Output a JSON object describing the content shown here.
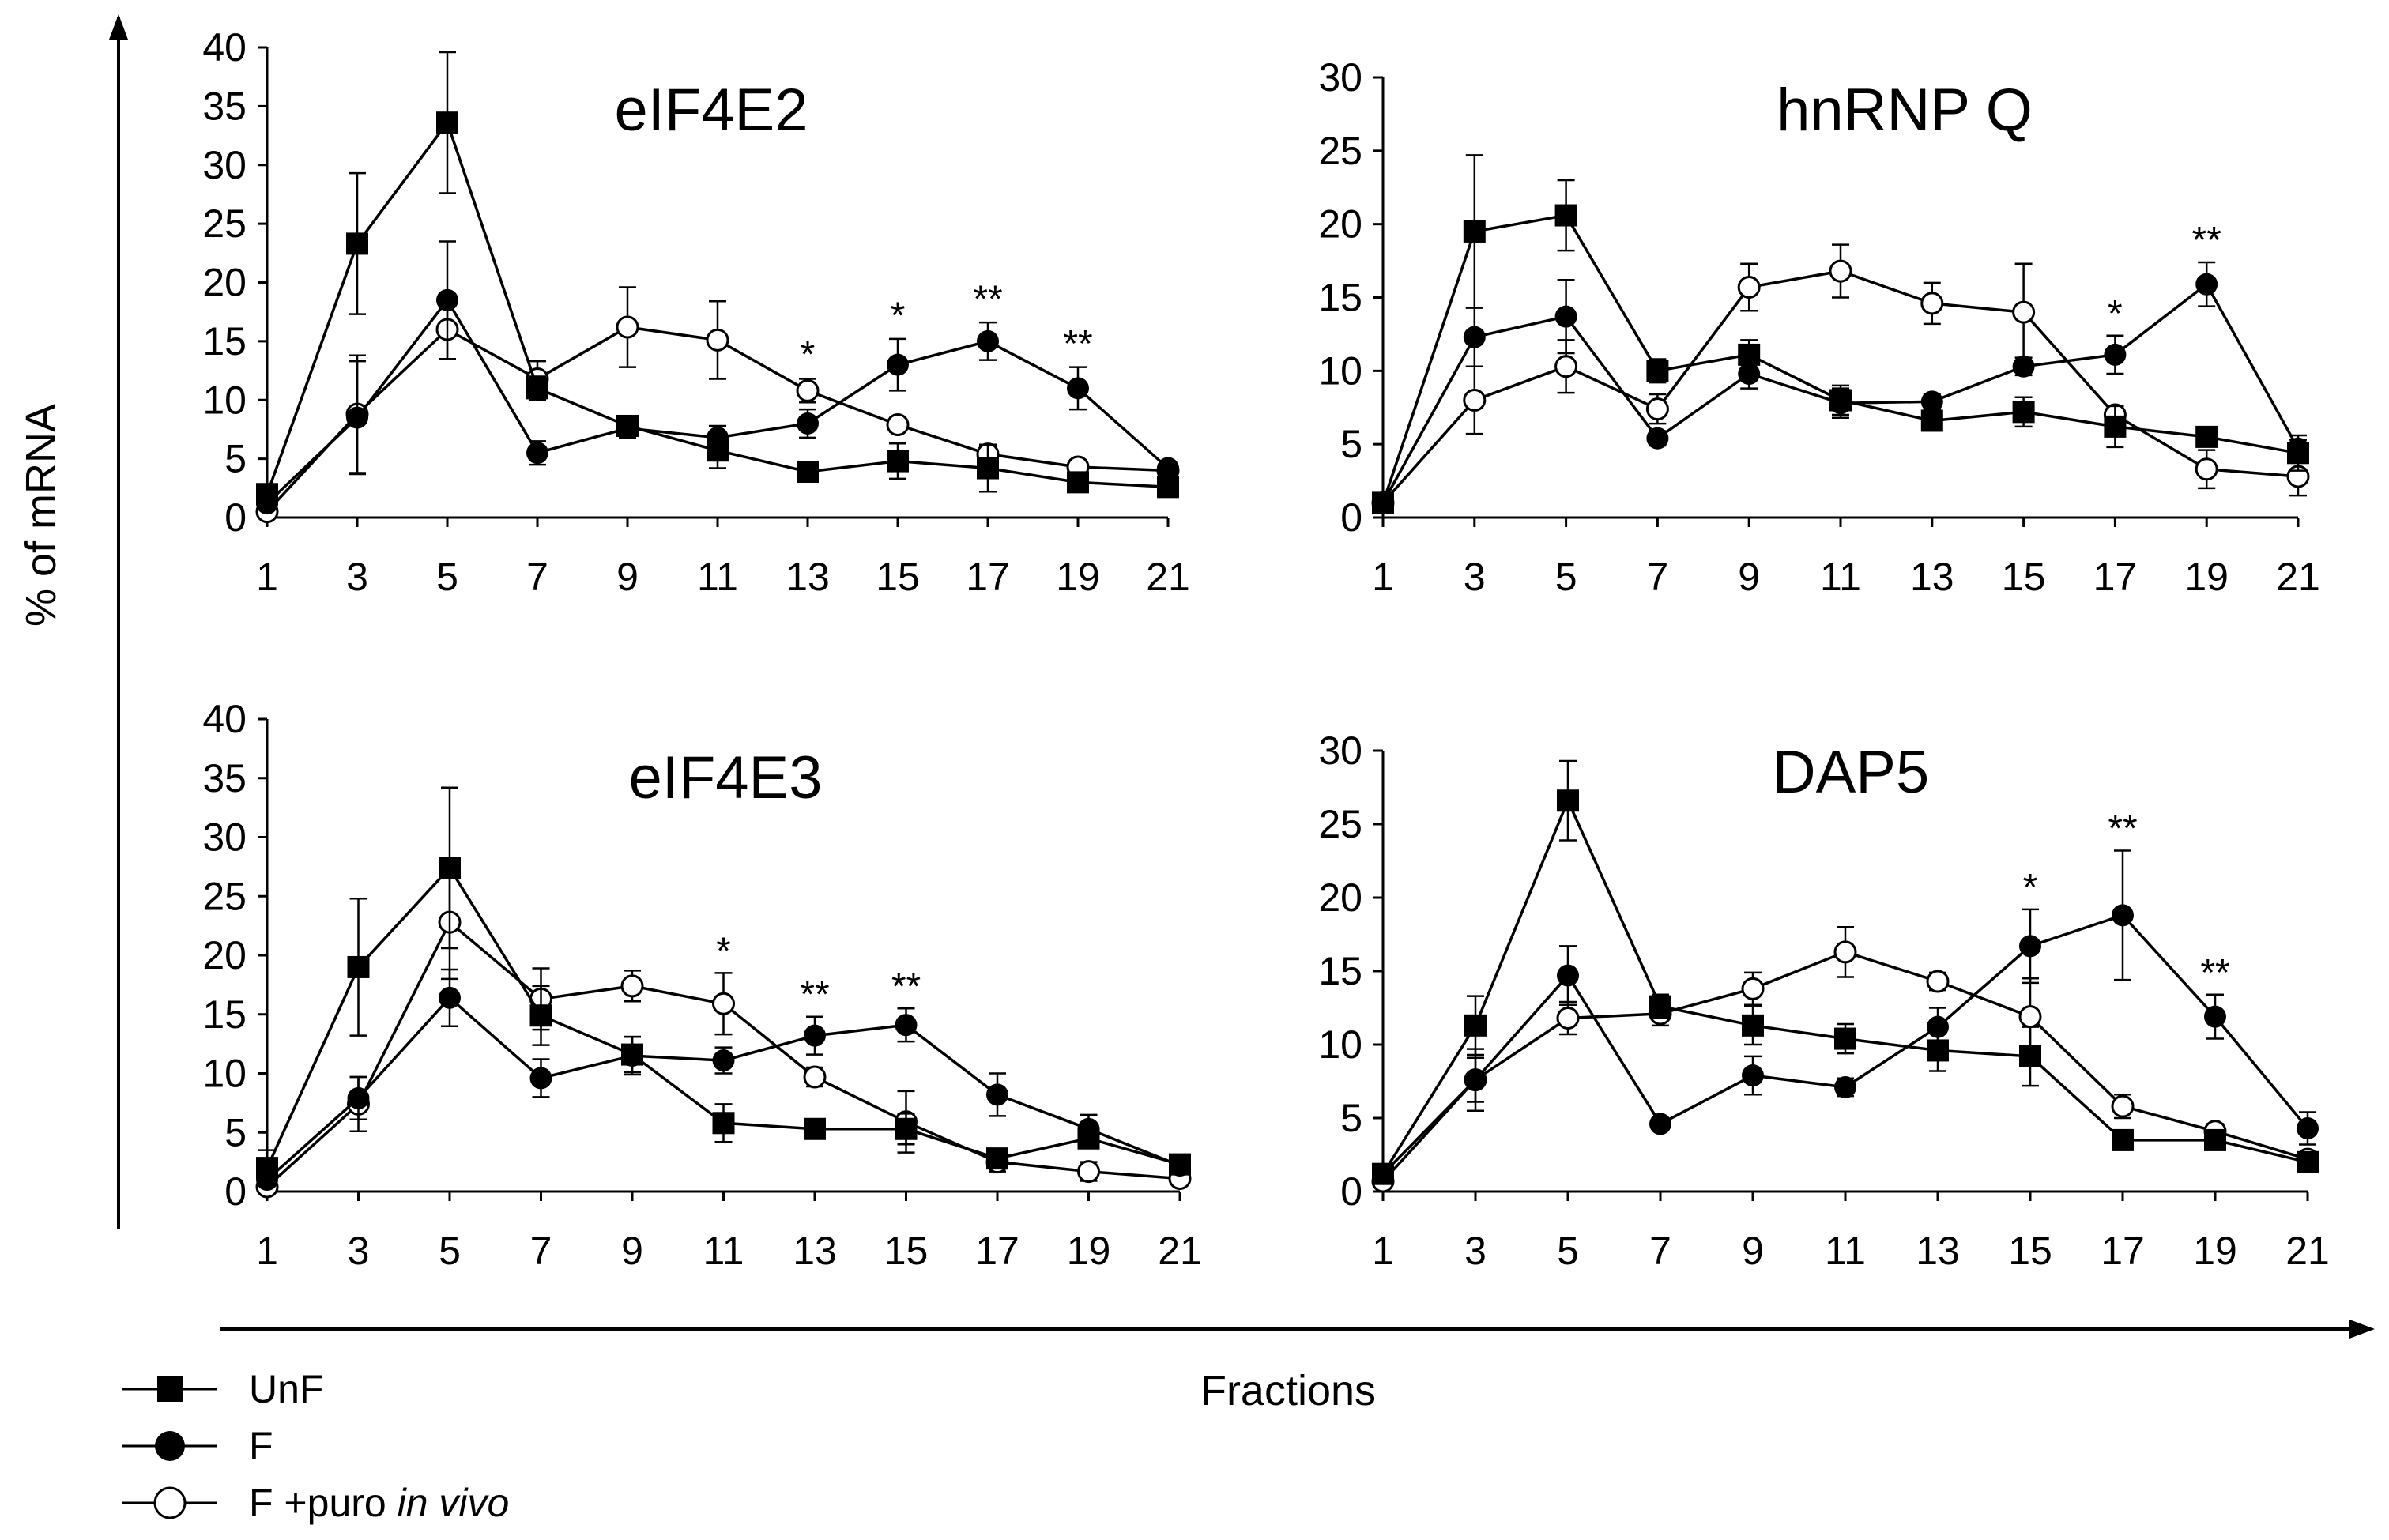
{
  "figure": {
    "ylabel": "% of mRNA",
    "xlabel": "Fractions"
  },
  "legend": [
    {
      "label": "UnF",
      "marker": "square-filled"
    },
    {
      "label": "F",
      "marker": "circle-filled"
    },
    {
      "label": "F +puro",
      "label_italic": "in vivo",
      "marker": "circle-open"
    }
  ],
  "colors": {
    "line": "#000000",
    "open_fill": "#ffffff",
    "filled": "#000000"
  },
  "chart_data": [
    {
      "type": "line",
      "title": "eIF4E2",
      "xlabel": "Fractions",
      "ylabel": "% of mRNA",
      "ylim": [
        0,
        40
      ],
      "yticks": [
        0,
        5,
        10,
        15,
        20,
        25,
        30,
        35,
        40
      ],
      "x": [
        1,
        3,
        5,
        7,
        9,
        11,
        13,
        15,
        17,
        19,
        21
      ],
      "series": [
        {
          "name": "UnF",
          "values": [
            2,
            23.3,
            33.6,
            11,
            7.8,
            5.7,
            3.9,
            4.8,
            4.2,
            3,
            2.6
          ],
          "errors": [
            0.5,
            6,
            6,
            1,
            0.5,
            1.5,
            0.5,
            1.5,
            2,
            0.5,
            0.5
          ]
        },
        {
          "name": "F",
          "values": [
            1.2,
            8.5,
            18.5,
            5.5,
            7.6,
            6.8,
            8,
            13,
            15,
            11,
            4.2
          ],
          "errors": [
            0.4,
            4.8,
            5,
            1,
            0.8,
            1,
            1.2,
            2.2,
            1.6,
            1.8,
            0.4
          ]
        },
        {
          "name": "F +puro in vivo",
          "values": [
            0.5,
            8.8,
            16,
            11.8,
            16.2,
            15.1,
            10.8,
            7.9,
            5.4,
            4.3,
            4
          ],
          "errors": [
            0.2,
            5,
            2.5,
            1.5,
            3.4,
            3.3,
            1,
            0.6,
            0.6,
            0.6,
            0.5
          ]
        }
      ],
      "annotations": [
        {
          "x": 13,
          "text": "*",
          "y_top": 12
        },
        {
          "x": 15,
          "text": "*",
          "y_top": 15.3
        },
        {
          "x": 17,
          "text": "**",
          "y_top": 16.7
        },
        {
          "x": 19,
          "text": "**",
          "y_top": 12.9
        }
      ]
    },
    {
      "type": "line",
      "title": "hnRNP Q",
      "xlabel": "Fractions",
      "ylabel": "% of mRNA",
      "ylim": [
        0,
        30
      ],
      "yticks": [
        0,
        5,
        10,
        15,
        20,
        25,
        30
      ],
      "x": [
        1,
        3,
        5,
        7,
        9,
        11,
        13,
        15,
        17,
        19,
        21
      ],
      "series": [
        {
          "name": "UnF",
          "values": [
            1,
            19.5,
            20.6,
            10,
            11.1,
            8,
            6.6,
            7.2,
            6.2,
            5.5,
            4.4
          ],
          "errors": [
            0.3,
            5.2,
            2.4,
            0.8,
            1,
            1,
            0.6,
            1,
            1.4,
            0.6,
            1.2
          ]
        },
        {
          "name": "F",
          "values": [
            1,
            12.3,
            13.7,
            5.4,
            9.8,
            7.8,
            7.9,
            10.3,
            11.1,
            15.9,
            4.7
          ],
          "errors": [
            0.3,
            2,
            2.5,
            0.5,
            1,
            1,
            0.5,
            0.6,
            1.3,
            1.5,
            0.6
          ]
        },
        {
          "name": "F +puro in vivo",
          "values": [
            1,
            8,
            10.3,
            7.4,
            15.7,
            16.8,
            14.6,
            14,
            7,
            3.3,
            2.8
          ],
          "errors": [
            0.3,
            2.3,
            1.8,
            1,
            1.6,
            1.8,
            1.4,
            3.3,
            0.6,
            1.3,
            1.3
          ]
        }
      ],
      "annotations": [
        {
          "x": 17,
          "text": "*",
          "y_top": 12.4
        },
        {
          "x": 19,
          "text": "**",
          "y_top": 17.4
        }
      ]
    },
    {
      "type": "line",
      "title": "eIF4E3",
      "xlabel": "Fractions",
      "ylabel": "% of mRNA",
      "ylim": [
        0,
        40
      ],
      "yticks": [
        0,
        5,
        10,
        15,
        20,
        25,
        30,
        35,
        40
      ],
      "x": [
        1,
        3,
        5,
        7,
        9,
        11,
        13,
        15,
        17,
        19,
        21
      ],
      "series": [
        {
          "name": "UnF",
          "values": [
            2,
            19,
            27.4,
            14.9,
            11.6,
            5.8,
            5.3,
            5.3,
            2.8,
            4.5,
            2.3
          ],
          "errors": [
            1.5,
            5.8,
            6.8,
            2.5,
            1.5,
            1.6,
            0.5,
            1.3,
            0.6,
            0.6,
            0.4
          ]
        },
        {
          "name": "F",
          "values": [
            1,
            7.9,
            16.4,
            9.6,
            11.5,
            11.1,
            13.2,
            14.1,
            8.2,
            5.3,
            2.2
          ],
          "errors": [
            0.5,
            1.8,
            2.4,
            1.6,
            1.6,
            1.1,
            1.6,
            1.4,
            1.8,
            1.2,
            0.4
          ]
        },
        {
          "name": "F +puro in vivo",
          "values": [
            0.4,
            7.4,
            22.8,
            16.3,
            17.4,
            15.9,
            9.7,
            5.9,
            2.5,
            1.7,
            1.1
          ],
          "errors": [
            0.3,
            2.3,
            4.8,
            2.6,
            1.3,
            2.6,
            0.8,
            2.6,
            0.8,
            0.8,
            0.3
          ]
        }
      ],
      "annotations": [
        {
          "x": 11,
          "text": "*",
          "y_top": 18.5
        },
        {
          "x": 13,
          "text": "**",
          "y_top": 14.8
        },
        {
          "x": 15,
          "text": "**",
          "y_top": 15.5
        }
      ]
    },
    {
      "type": "line",
      "title": "DAP5",
      "xlabel": "Fractions",
      "ylabel": "% of mRNA",
      "ylim": [
        0,
        30
      ],
      "yticks": [
        0,
        5,
        10,
        15,
        20,
        25,
        30
      ],
      "x": [
        1,
        3,
        5,
        7,
        9,
        11,
        13,
        15,
        17,
        19,
        21
      ],
      "series": [
        {
          "name": "UnF",
          "values": [
            1.2,
            11.3,
            26.6,
            12.6,
            11.3,
            10.4,
            9.6,
            9.2,
            3.5,
            3.5,
            2
          ],
          "errors": [
            0.4,
            2,
            2.7,
            0.8,
            1.3,
            1,
            1.4,
            2,
            0.4,
            0.4,
            0.4
          ]
        },
        {
          "name": "F",
          "values": [
            1.2,
            7.6,
            14.7,
            4.6,
            7.9,
            7.1,
            11.2,
            16.7,
            18.8,
            11.9,
            4.3
          ],
          "errors": [
            0.4,
            2.1,
            2,
            0.3,
            1.3,
            0.6,
            1.3,
            2.5,
            4.4,
            1.5,
            1.1
          ]
        },
        {
          "name": "F +puro in vivo",
          "values": [
            0.7,
            7.6,
            11.8,
            12.1,
            13.8,
            16.3,
            14.3,
            11.9,
            5.8,
            4.1,
            2.2
          ],
          "errors": [
            0.3,
            1.5,
            1.1,
            0.8,
            1.1,
            1.7,
            0.6,
            2.6,
            0.8,
            0.5,
            0.4
          ]
        }
      ],
      "annotations": [
        {
          "x": 15,
          "text": "*",
          "y_top": 19.2
        },
        {
          "x": 17,
          "text": "**",
          "y_top": 23.2
        },
        {
          "x": 19,
          "text": "**",
          "y_top": 13.4
        }
      ]
    }
  ]
}
